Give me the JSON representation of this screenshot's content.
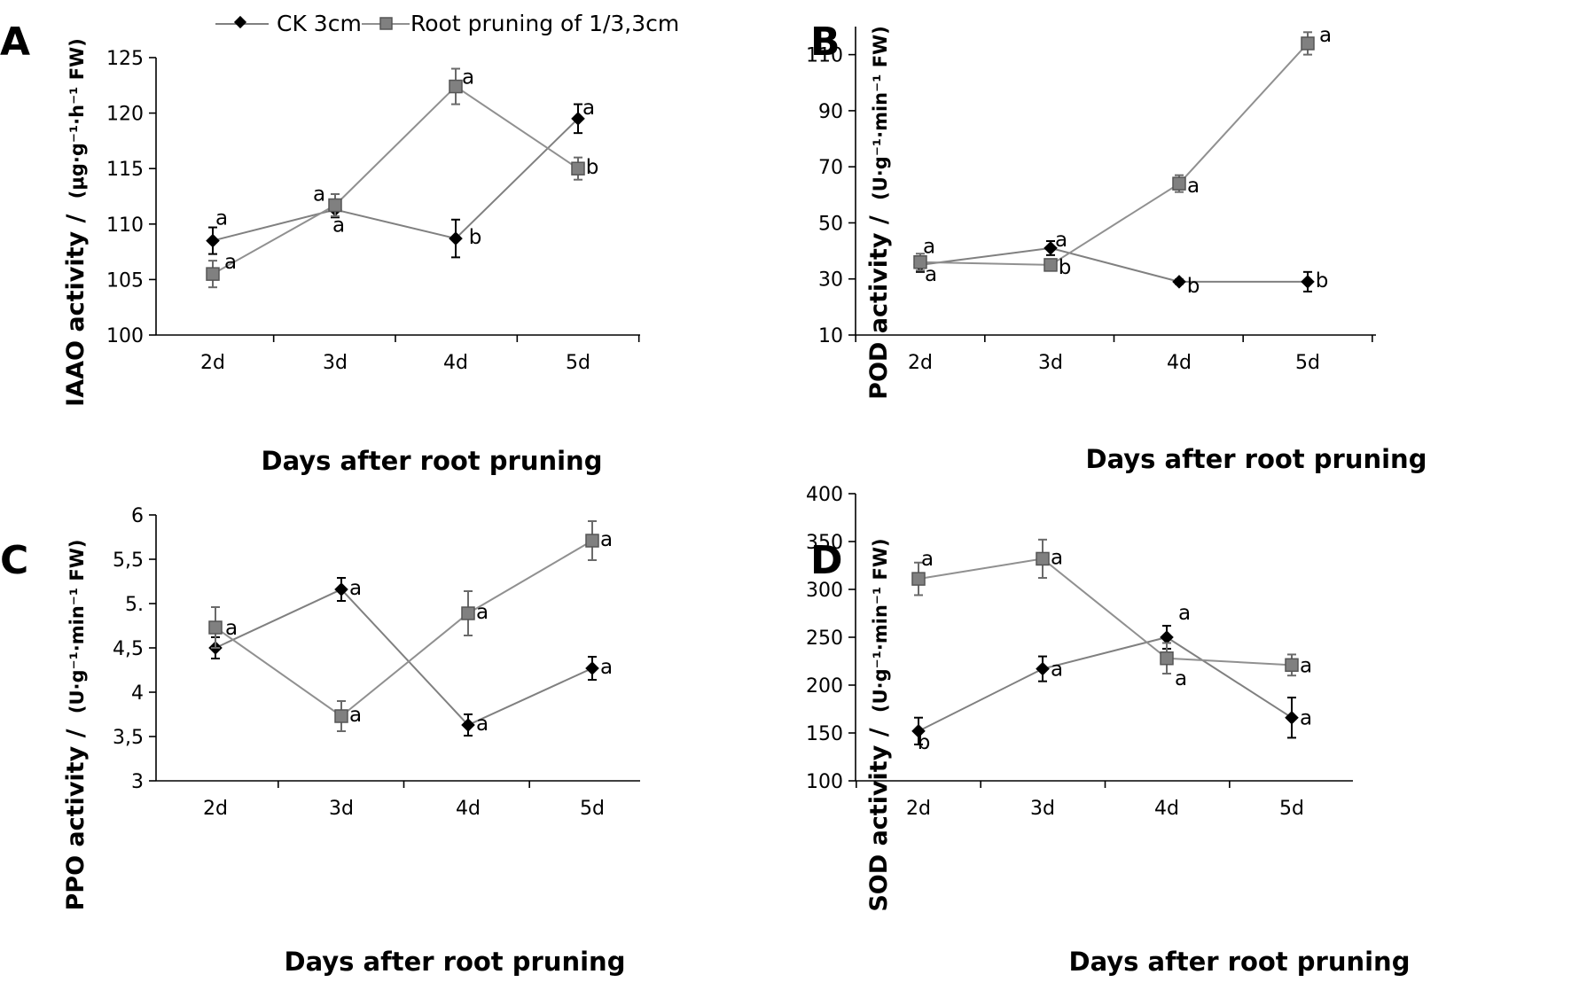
{
  "legend": {
    "ck": "CK 3cm",
    "pruning": "Root pruning of 1/3,3cm"
  },
  "colors": {
    "ck_marker": "#000000",
    "ck_line": "#808080",
    "pruning_marker": "#808080",
    "pruning_marker_edge": "#555555",
    "pruning_line": "#909090",
    "axis": "#000000"
  },
  "chart_data": [
    {
      "panel": "A",
      "type": "line",
      "categories": [
        "2d",
        "3d",
        "4d",
        "5d"
      ],
      "xlabel": "Days after root pruning",
      "ylabel": "IAAO activity /",
      "ylabel_unit": "(μg·g⁻¹·h⁻¹ FW)",
      "ylim": [
        100,
        125
      ],
      "yticks": [
        100,
        105,
        110,
        115,
        120,
        125
      ],
      "ytick_labels": [
        "100",
        "105",
        "110",
        "115",
        "120",
        "125"
      ],
      "series": [
        {
          "name": "CK 3cm",
          "values": [
            108.5,
            111.3,
            108.7,
            119.5
          ],
          "errors": [
            1.2,
            0.7,
            1.7,
            1.3
          ],
          "labels": [
            "a",
            "a",
            "b",
            "a"
          ]
        },
        {
          "name": "Root pruning of 1/3,3cm",
          "values": [
            105.5,
            111.7,
            122.4,
            115.0
          ],
          "errors": [
            1.2,
            1.0,
            1.6,
            1.0
          ],
          "labels": [
            "a",
            "a",
            "a",
            "b"
          ]
        }
      ]
    },
    {
      "panel": "B",
      "type": "line",
      "categories": [
        "2d",
        "3d",
        "4d",
        "5d"
      ],
      "xlabel": "Days after root pruning",
      "ylabel": "POD activity /",
      "ylabel_unit": "(U·g⁻¹·min⁻¹ FW)",
      "ylim": [
        10,
        120
      ],
      "yticks": [
        10,
        30,
        50,
        70,
        90,
        110
      ],
      "ytick_labels": [
        "10",
        "30",
        "50",
        "70",
        "90",
        "110"
      ],
      "series": [
        {
          "name": "CK 3cm",
          "values": [
            35,
            41,
            29,
            29
          ],
          "errors": [
            2.5,
            2.5,
            0.8,
            3.5
          ],
          "labels": [
            "a",
            "a",
            "b",
            "b"
          ]
        },
        {
          "name": "Root pruning of 1/3,3cm",
          "values": [
            36,
            35,
            64,
            114
          ],
          "errors": [
            3.0,
            2.0,
            3.0,
            4.0
          ],
          "labels": [
            "a",
            "b",
            "a",
            "a"
          ]
        }
      ]
    },
    {
      "panel": "C",
      "type": "line",
      "categories": [
        "2d",
        "3d",
        "4d",
        "5d"
      ],
      "xlabel": "Days after root pruning",
      "ylabel": "PPO activity /",
      "ylabel_unit": "(U·g⁻¹·min⁻¹ FW)",
      "ylim": [
        3,
        6
      ],
      "yticks": [
        3,
        3.5,
        4,
        4.5,
        5,
        5.5,
        6
      ],
      "ytick_labels": [
        "3",
        "3,5",
        "4",
        "4,5",
        "5.",
        "5,5",
        "6"
      ],
      "series": [
        {
          "name": "CK 3cm",
          "values": [
            4.5,
            5.16,
            3.63,
            4.27
          ],
          "errors": [
            0.12,
            0.13,
            0.12,
            0.13
          ],
          "labels": [
            "",
            "a",
            "a",
            "a"
          ]
        },
        {
          "name": "Root pruning of 1/3,3cm",
          "values": [
            4.73,
            3.73,
            4.89,
            5.71
          ],
          "errors": [
            0.23,
            0.17,
            0.25,
            0.22
          ],
          "labels": [
            "a",
            "a",
            "a",
            "a"
          ]
        }
      ]
    },
    {
      "panel": "D",
      "type": "line",
      "categories": [
        "2d",
        "3d",
        "4d",
        "5d"
      ],
      "xlabel": "Days after root pruning",
      "ylabel": "SOD activity /",
      "ylabel_unit": "(U·g⁻¹·min⁻¹ FW)",
      "ylim": [
        100,
        400
      ],
      "yticks": [
        100,
        150,
        200,
        250,
        300,
        350,
        400
      ],
      "ytick_labels": [
        "100",
        "150",
        "200",
        "250",
        "300",
        "350",
        "400"
      ],
      "series": [
        {
          "name": "CK 3cm",
          "values": [
            152,
            217,
            250,
            166
          ],
          "errors": [
            14,
            13,
            12,
            21
          ],
          "labels": [
            "b",
            "a",
            "a",
            "a"
          ]
        },
        {
          "name": "Root pruning of 1/3,3cm",
          "values": [
            311,
            332,
            228,
            221
          ],
          "errors": [
            17,
            20,
            16,
            11
          ],
          "labels": [
            "a",
            "a",
            "a",
            "a"
          ]
        }
      ]
    }
  ]
}
